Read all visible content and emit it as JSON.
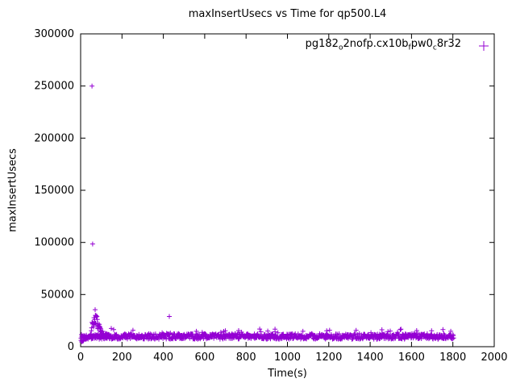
{
  "chart_data": {
    "type": "scatter",
    "title": "maxInsertUsecs vs Time for qp500.L4",
    "xlabel": "Time(s)",
    "ylabel": "maxInsertUsecs",
    "xlim": [
      0,
      2000
    ],
    "ylim": [
      0,
      300000
    ],
    "xticks": [
      0,
      200,
      400,
      600,
      800,
      1000,
      1200,
      1400,
      1600,
      1800,
      2000
    ],
    "yticks": [
      0,
      50000,
      100000,
      150000,
      200000,
      250000,
      300000
    ],
    "grid": false,
    "background": "#ffffff",
    "axis_color": "#000000",
    "legend": {
      "position": "top-right-inside",
      "marker": "plus",
      "label_plain": "pg182_o2nofp.cx10b_fpw0_c8r32",
      "label_segments": [
        {
          "text": "pg182"
        },
        {
          "sub": "o"
        },
        {
          "text": "2nofp.cx10b"
        },
        {
          "sub": "f"
        },
        {
          "text": "pw0"
        },
        {
          "sub": "c"
        },
        {
          "text": "8r32"
        }
      ]
    },
    "series": [
      {
        "name": "pg182_o2nofp.cx10b_fpw0_c8r32",
        "color": "#9400d3",
        "marker": "plus",
        "outliers": [
          [
            55,
            250000
          ],
          [
            58,
            98500
          ],
          [
            70,
            35500
          ],
          [
            429,
            29000
          ],
          [
            148,
            17500
          ],
          [
            160,
            16500
          ],
          [
            253,
            15800
          ],
          [
            560,
            14800
          ],
          [
            700,
            15200
          ],
          [
            764,
            15500
          ],
          [
            905,
            15000
          ],
          [
            940,
            16800
          ],
          [
            1075,
            14800
          ],
          [
            1190,
            15300
          ],
          [
            1332,
            15600
          ],
          [
            1457,
            16200
          ],
          [
            1497,
            15000
          ],
          [
            1549,
            16800
          ],
          [
            1625,
            15500
          ],
          [
            1697,
            15200
          ],
          [
            1752,
            16400
          ],
          [
            1790,
            14800
          ]
        ],
        "model": {
          "seed": 1337,
          "band": {
            "x_start": 2,
            "x_end": 1805,
            "x_step": 2,
            "y_min": 7200,
            "y_range": 5300,
            "spike_prob": 0.05,
            "spike_extra": 5500
          },
          "ramp": {
            "x_start": 2,
            "x_end": 50,
            "x_step": 3,
            "y_base": 4500,
            "slope": 140,
            "noise": 3000
          },
          "hump": {
            "x_start": 52,
            "x_end": 135,
            "x_step": 1.6,
            "center": 72,
            "sigma": 16,
            "amplitude": 22000,
            "y_base": 11000,
            "noise": 4000
          }
        },
        "summary": "Dense band around 8000-13000 usec from t=0 to t=1800 with occasional spikes to ~17000; startup transient cluster 15000-35000 around t=55-110; extreme outliers ~250000 and ~98500 near t=55-58; isolated spike ~29000 at t=429."
      }
    ]
  }
}
